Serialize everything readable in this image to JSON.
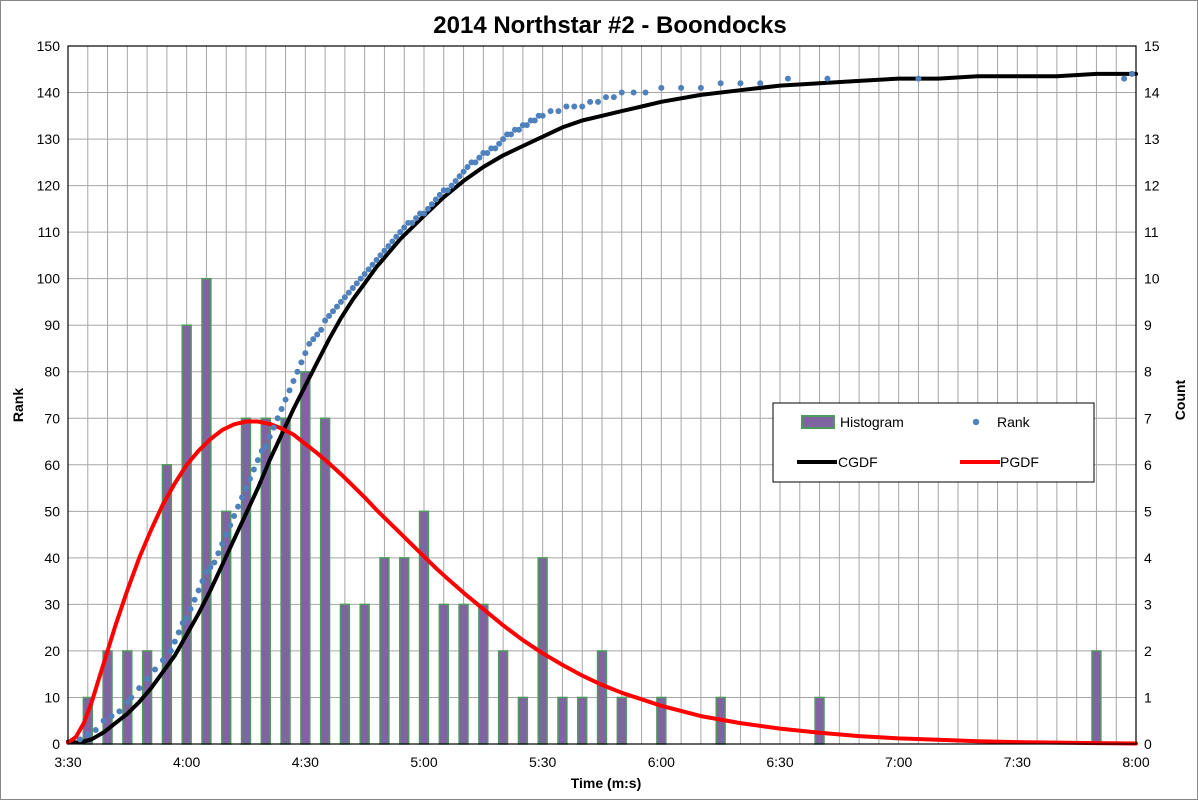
{
  "chart_data": {
    "type": "bar+scatter+line",
    "title": "2014 Northstar #2 - Boondocks",
    "xlabel": "Time (m:s)",
    "ylabel_left": "Rank",
    "ylabel_right": "Count",
    "x_range_seconds": [
      210,
      480
    ],
    "x_tick_seconds": [
      210,
      240,
      270,
      300,
      330,
      360,
      390,
      420,
      450,
      480
    ],
    "x_tick_labels": [
      "3:30",
      "4:00",
      "4:30",
      "5:00",
      "5:30",
      "6:00",
      "6:30",
      "7:00",
      "7:30",
      "8:00"
    ],
    "y_left_range": [
      0,
      150
    ],
    "y_left_ticks": [
      0,
      10,
      20,
      30,
      40,
      50,
      60,
      70,
      80,
      90,
      100,
      110,
      120,
      130,
      140,
      150
    ],
    "y_right_range": [
      0,
      15
    ],
    "y_right_ticks": [
      0,
      1,
      2,
      3,
      4,
      5,
      6,
      7,
      8,
      9,
      10,
      11,
      12,
      13,
      14,
      15
    ],
    "grid": "vertical every 5 s, horizontal every 10 rank",
    "legend_position": "right, mid-height",
    "series": [
      {
        "name": "Histogram",
        "kind": "bar",
        "axis": "right",
        "color": "#8064A2",
        "border": "#4E9A5C",
        "bin_seconds": 5,
        "x": [
          215,
          220,
          225,
          230,
          235,
          240,
          245,
          250,
          255,
          260,
          265,
          270,
          275,
          280,
          285,
          290,
          295,
          300,
          305,
          310,
          315,
          320,
          325,
          330,
          335,
          340,
          345,
          350,
          355,
          360,
          375,
          400,
          470
        ],
        "values": [
          1,
          2,
          2,
          2,
          6,
          9,
          10,
          5,
          7,
          7,
          7,
          8,
          7,
          3,
          3,
          4,
          4,
          5,
          3,
          3,
          3,
          2,
          1,
          4,
          1,
          1,
          2,
          1,
          0,
          1,
          1,
          1,
          2
        ]
      },
      {
        "name": "Rank",
        "kind": "scatter",
        "axis": "left",
        "color": "#4F81BD",
        "x": [
          213,
          215,
          217,
          219,
          221,
          223,
          225,
          226,
          228,
          230,
          232,
          234,
          236,
          237,
          238,
          239,
          240,
          241,
          242,
          243,
          244,
          245,
          246,
          247,
          248,
          249,
          250,
          251,
          252,
          253,
          254,
          255,
          256,
          257,
          258,
          259,
          260,
          261,
          262,
          263,
          264,
          265,
          266,
          267,
          268,
          269,
          270,
          271,
          272,
          273,
          274,
          275,
          276,
          277,
          278,
          279,
          280,
          281,
          282,
          283,
          284,
          285,
          286,
          287,
          288,
          289,
          290,
          291,
          292,
          293,
          294,
          295,
          296,
          297,
          298,
          299,
          300,
          301,
          302,
          303,
          304,
          305,
          306,
          307,
          308,
          309,
          310,
          311,
          312,
          313,
          314,
          315,
          316,
          317,
          318,
          319,
          320,
          321,
          322,
          323,
          324,
          325,
          326,
          327,
          328,
          329,
          330,
          332,
          334,
          336,
          338,
          340,
          342,
          344,
          346,
          348,
          350,
          353,
          356,
          360,
          365,
          370,
          375,
          380,
          385,
          392,
          402,
          425,
          477,
          479
        ],
        "values": [
          1,
          2,
          3,
          5,
          6,
          7,
          9,
          10,
          12,
          14,
          16,
          18,
          20,
          22,
          24,
          26,
          27,
          29,
          31,
          33,
          35,
          37,
          38,
          39,
          41,
          43,
          45,
          47,
          49,
          51,
          53,
          55,
          57,
          59,
          61,
          63,
          64,
          66,
          68,
          70,
          72,
          74,
          76,
          78,
          80,
          82,
          84,
          86,
          87,
          88,
          89,
          91,
          92,
          93,
          94,
          95,
          96,
          97,
          98,
          99,
          100,
          101,
          102,
          103,
          104,
          105,
          106,
          107,
          108,
          109,
          110,
          111,
          112,
          112,
          113,
          114,
          114,
          115,
          116,
          117,
          118,
          119,
          119,
          120,
          121,
          122,
          123,
          124,
          125,
          125,
          126,
          127,
          127,
          128,
          128,
          129,
          130,
          131,
          131,
          132,
          132,
          133,
          133,
          134,
          134,
          135,
          135,
          136,
          136,
          137,
          137,
          137,
          138,
          138,
          139,
          139,
          140,
          140,
          140,
          141,
          141,
          141,
          142,
          142,
          142,
          143,
          143,
          143,
          143,
          144
        ]
      },
      {
        "name": "CGDF",
        "kind": "line",
        "axis": "left",
        "color": "#000000",
        "x": [
          210,
          213,
          216,
          219,
          222,
          225,
          228,
          231,
          234,
          237,
          240,
          243,
          246,
          249,
          252,
          255,
          258,
          261,
          264,
          267,
          270,
          273,
          276,
          279,
          282,
          285,
          288,
          291,
          294,
          297,
          300,
          305,
          310,
          315,
          320,
          325,
          330,
          335,
          340,
          345,
          350,
          355,
          360,
          370,
          380,
          390,
          400,
          410,
          420,
          430,
          440,
          450,
          460,
          470,
          480
        ],
        "values": [
          0.5,
          0.3,
          1.0,
          2.5,
          4.5,
          6.5,
          9.0,
          12.0,
          15.5,
          19.0,
          23.5,
          28.0,
          33.0,
          38.5,
          44.0,
          49.5,
          55.0,
          61.0,
          66.5,
          72.0,
          77.0,
          82.0,
          87.0,
          91.5,
          95.5,
          99.0,
          102.5,
          105.5,
          108.5,
          111.0,
          113.5,
          117.5,
          121.0,
          124.0,
          126.5,
          128.5,
          130.5,
          132.5,
          134.0,
          135.0,
          136.0,
          137.0,
          138.0,
          139.5,
          140.5,
          141.5,
          142.0,
          142.5,
          143.0,
          143.0,
          143.5,
          143.5,
          143.5,
          144.0,
          144.0
        ]
      },
      {
        "name": "PGDF",
        "kind": "line",
        "axis": "left",
        "color": "#FF0000",
        "x": [
          210,
          212,
          214,
          216,
          218,
          220,
          222,
          225,
          228,
          231,
          234,
          237,
          240,
          243,
          246,
          249,
          252,
          255,
          258,
          261,
          264,
          267,
          270,
          273,
          276,
          279,
          282,
          285,
          288,
          291,
          294,
          297,
          300,
          303,
          306,
          310,
          315,
          320,
          325,
          330,
          335,
          340,
          345,
          350,
          360,
          370,
          380,
          390,
          400,
          410,
          420,
          430,
          440,
          450,
          460,
          470,
          480
        ],
        "values": [
          0.3,
          1.5,
          4.5,
          9.0,
          14.5,
          20.0,
          25.5,
          33.0,
          40.0,
          46.0,
          51.5,
          56.0,
          60.0,
          63.0,
          65.5,
          67.5,
          68.7,
          69.3,
          69.3,
          68.8,
          67.8,
          66.5,
          64.5,
          62.5,
          60.3,
          58.0,
          55.5,
          53.0,
          50.3,
          47.8,
          45.3,
          42.8,
          40.3,
          37.8,
          35.5,
          32.5,
          29.0,
          25.5,
          22.3,
          19.5,
          17.0,
          14.7,
          12.7,
          11.0,
          8.2,
          6.0,
          4.5,
          3.3,
          2.4,
          1.7,
          1.2,
          0.9,
          0.6,
          0.4,
          0.3,
          0.2,
          0.1
        ]
      }
    ],
    "legend": [
      {
        "name": "Histogram",
        "marker": "bar"
      },
      {
        "name": "Rank",
        "marker": "dot"
      },
      {
        "name": "CGDF",
        "marker": "line-black"
      },
      {
        "name": "PGDF",
        "marker": "line-red"
      }
    ]
  }
}
